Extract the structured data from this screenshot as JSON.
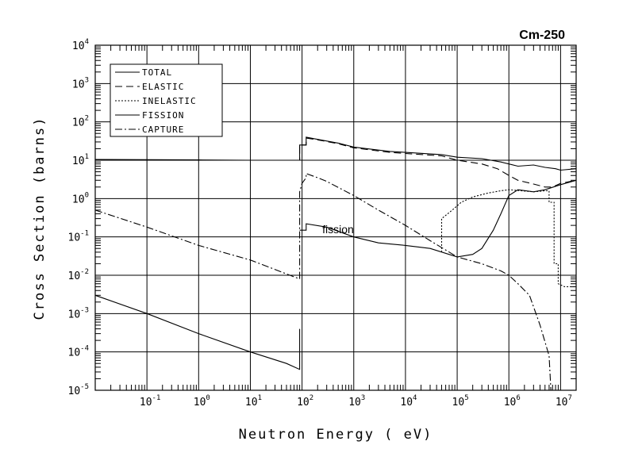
{
  "chart_data": {
    "type": "line",
    "title": "Cm-250",
    "xlabel": "Neutron Energy ( eV)",
    "ylabel": "Cross Section (barns)",
    "xscale": "log",
    "yscale": "log",
    "xlim": [
      0.01,
      20000000
    ],
    "ylim": [
      1e-05,
      10000
    ],
    "grid": true,
    "legend_position": "top-left",
    "x_ticks": [
      {
        "base": "10",
        "exp": "-1",
        "value": 0.1
      },
      {
        "base": "10",
        "exp": "0",
        "value": 1
      },
      {
        "base": "10",
        "exp": "1",
        "value": 10
      },
      {
        "base": "10",
        "exp": "2",
        "value": 100
      },
      {
        "base": "10",
        "exp": "3",
        "value": 1000
      },
      {
        "base": "10",
        "exp": "4",
        "value": 10000
      },
      {
        "base": "10",
        "exp": "5",
        "value": 100000
      },
      {
        "base": "10",
        "exp": "6",
        "value": 1000000
      },
      {
        "base": "10",
        "exp": "7",
        "value": 10000000
      }
    ],
    "y_ticks": [
      {
        "base": "10",
        "exp": "4",
        "value": 10000
      },
      {
        "base": "10",
        "exp": "3",
        "value": 1000
      },
      {
        "base": "10",
        "exp": "2",
        "value": 100
      },
      {
        "base": "10",
        "exp": "1",
        "value": 10
      },
      {
        "base": "10",
        "exp": "0",
        "value": 1
      },
      {
        "base": "10",
        "exp": "-1",
        "value": 0.1
      },
      {
        "base": "10",
        "exp": "-2",
        "value": 0.01
      },
      {
        "base": "10",
        "exp": "-3",
        "value": 0.001
      },
      {
        "base": "10",
        "exp": "-4",
        "value": 0.0001
      },
      {
        "base": "10",
        "exp": "-5",
        "value": 1e-05
      }
    ],
    "annotations": [
      {
        "text": "fission",
        "x": 500,
        "y": 0.16
      }
    ],
    "series": [
      {
        "name": "TOTAL",
        "style": "solid",
        "points": [
          [
            0.01,
            10.5
          ],
          [
            1,
            10.2
          ],
          [
            10,
            10.0
          ],
          [
            90,
            10.0
          ],
          [
            90,
            25
          ],
          [
            120,
            25
          ],
          [
            120,
            40
          ],
          [
            200,
            35
          ],
          [
            500,
            28
          ],
          [
            1000,
            22
          ],
          [
            5000,
            17
          ],
          [
            10000,
            16
          ],
          [
            50000,
            14
          ],
          [
            100000,
            12
          ],
          [
            300000,
            11
          ],
          [
            700000,
            9
          ],
          [
            1000000,
            8
          ],
          [
            1500000,
            7
          ],
          [
            3000000,
            7.5
          ],
          [
            5000000,
            6.5
          ],
          [
            8000000,
            6
          ],
          [
            10000000,
            5.5
          ],
          [
            20000000,
            6
          ]
        ]
      },
      {
        "name": "ELASTIC",
        "style": "dashed",
        "points": [
          [
            0.01,
            10.3
          ],
          [
            1,
            10.0
          ],
          [
            10,
            10.0
          ],
          [
            90,
            10.0
          ],
          [
            90,
            25
          ],
          [
            120,
            25
          ],
          [
            120,
            38
          ],
          [
            200,
            34
          ],
          [
            500,
            27
          ],
          [
            1000,
            21
          ],
          [
            5000,
            16
          ],
          [
            10000,
            15
          ],
          [
            50000,
            13
          ],
          [
            100000,
            10
          ],
          [
            300000,
            8
          ],
          [
            600000,
            6
          ],
          [
            1000000,
            4
          ],
          [
            1500000,
            3
          ],
          [
            3000000,
            2.4
          ],
          [
            5000000,
            2
          ],
          [
            7000000,
            2
          ],
          [
            10000000,
            2.5
          ],
          [
            20000000,
            3
          ]
        ]
      },
      {
        "name": "INELASTIC",
        "style": "dotted",
        "points": [
          [
            50000,
            0.04
          ],
          [
            50000,
            0.3
          ],
          [
            80000,
            0.5
          ],
          [
            120000,
            0.8
          ],
          [
            200000,
            1.1
          ],
          [
            400000,
            1.4
          ],
          [
            700000,
            1.6
          ],
          [
            1000000,
            1.7
          ],
          [
            3000000,
            1.5
          ],
          [
            5000000,
            1.6
          ],
          [
            6000000,
            1.6
          ],
          [
            6000000,
            0.8
          ],
          [
            7500000,
            0.8
          ],
          [
            7500000,
            0.02
          ],
          [
            9000000,
            0.02
          ],
          [
            9000000,
            0.006
          ],
          [
            12000000,
            0.005
          ],
          [
            20000000,
            0.005
          ]
        ]
      },
      {
        "name": "FISSION",
        "style": "solid",
        "points": [
          [
            90,
            0.15
          ],
          [
            120,
            0.15
          ],
          [
            120,
            0.22
          ],
          [
            300,
            0.18
          ],
          [
            1000,
            0.1
          ],
          [
            3000,
            0.07
          ],
          [
            10000,
            0.06
          ],
          [
            30000,
            0.05
          ],
          [
            100000,
            0.03
          ],
          [
            200000,
            0.035
          ],
          [
            300000,
            0.05
          ],
          [
            500000,
            0.15
          ],
          [
            700000,
            0.4
          ],
          [
            1000000,
            1.2
          ],
          [
            1500000,
            1.7
          ],
          [
            3000000,
            1.5
          ],
          [
            5000000,
            1.7
          ],
          [
            10000000,
            2.3
          ],
          [
            20000000,
            3
          ]
        ]
      },
      {
        "name": "CAPTURE",
        "style": "dashdot",
        "points": [
          [
            0.01,
            0.5
          ],
          [
            0.1,
            0.18
          ],
          [
            1,
            0.06
          ],
          [
            10,
            0.025
          ],
          [
            90,
            0.008
          ],
          [
            90,
            1.5
          ],
          [
            100,
            2.5
          ],
          [
            120,
            3.5
          ],
          [
            120,
            4.5
          ],
          [
            200,
            3.5
          ],
          [
            300,
            2.8
          ],
          [
            1000,
            1.2
          ],
          [
            3000,
            0.5
          ],
          [
            10000,
            0.2
          ],
          [
            30000,
            0.08
          ],
          [
            100000,
            0.03
          ],
          [
            300000,
            0.02
          ],
          [
            700000,
            0.013
          ],
          [
            1000000,
            0.01
          ],
          [
            1500000,
            0.006
          ],
          [
            2500000,
            0.003
          ],
          [
            4000000,
            0.0005
          ],
          [
            6000000,
            8e-05
          ],
          [
            6500000,
            1e-05
          ]
        ]
      },
      {
        "name": "",
        "style": "solid",
        "points": [
          [
            0.01,
            0.003
          ],
          [
            0.1,
            0.001
          ],
          [
            1,
            0.0003
          ],
          [
            10,
            0.0001
          ],
          [
            50,
            5e-05
          ],
          [
            90,
            3.5e-05
          ],
          [
            90,
            0.0004
          ]
        ]
      }
    ]
  }
}
